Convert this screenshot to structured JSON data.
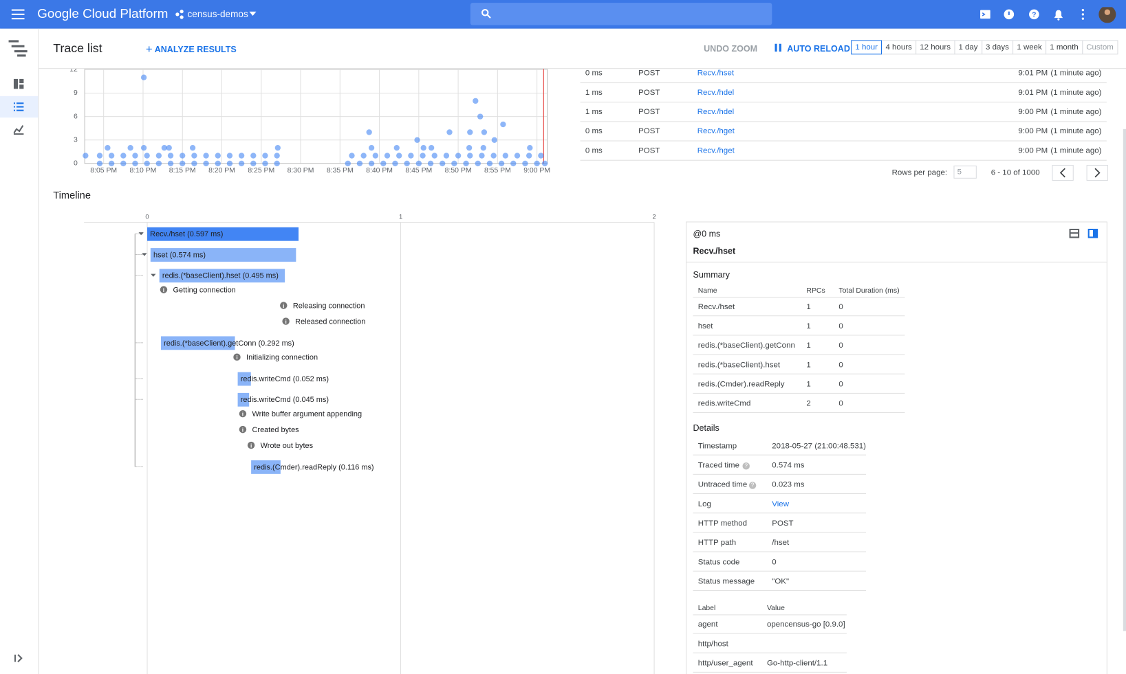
{
  "header": {
    "product": "Google Cloud Platform",
    "project": "census-demos"
  },
  "toolbar": {
    "title": "Trace list",
    "analyze": "ANALYZE RESULTS",
    "undo_zoom": "UNDO ZOOM",
    "auto_reload": "AUTO RELOAD",
    "ranges": [
      "1 hour",
      "4 hours",
      "12 hours",
      "1 day",
      "3 days",
      "1 week",
      "1 month",
      "Custom"
    ]
  },
  "chart_data": {
    "type": "scatter",
    "color": "#4285f4",
    "xlim": [
      2.6,
      61.3
    ],
    "ylim": [
      0,
      12.1
    ],
    "yticks": [
      0,
      3,
      6,
      9,
      12
    ],
    "xticks": [
      {
        "value": 5,
        "label": "8:05 PM"
      },
      {
        "value": 10,
        "label": "8:10 PM"
      },
      {
        "value": 15,
        "label": "8:15 PM"
      },
      {
        "value": 20,
        "label": "8:20 PM"
      },
      {
        "value": 25,
        "label": "8:25 PM"
      },
      {
        "value": 30,
        "label": "8:30 PM"
      },
      {
        "value": 35,
        "label": "8:35 PM"
      },
      {
        "value": 40,
        "label": "8:40 PM"
      },
      {
        "value": 45,
        "label": "8:45 PM"
      },
      {
        "value": 50,
        "label": "8:50 PM"
      },
      {
        "value": 55,
        "label": "8:55 PM"
      },
      {
        "value": 60,
        "label": "9:00 PM"
      }
    ],
    "grid": true,
    "points": [
      [
        2.7,
        1
      ],
      [
        4.5,
        1
      ],
      [
        6,
        1
      ],
      [
        7.5,
        1
      ],
      [
        9,
        1
      ],
      [
        10.5,
        1
      ],
      [
        12,
        1
      ],
      [
        13.5,
        1
      ],
      [
        15,
        1
      ],
      [
        16.5,
        1
      ],
      [
        18,
        1
      ],
      [
        19.5,
        1
      ],
      [
        21,
        1
      ],
      [
        22.5,
        1
      ],
      [
        24,
        1
      ],
      [
        25.5,
        1
      ],
      [
        27,
        1
      ],
      [
        36.5,
        1
      ],
      [
        38,
        1
      ],
      [
        39.5,
        1
      ],
      [
        41,
        1
      ],
      [
        42.5,
        1
      ],
      [
        44,
        1
      ],
      [
        45.5,
        1
      ],
      [
        47,
        1
      ],
      [
        48.5,
        1
      ],
      [
        50,
        1
      ],
      [
        51.5,
        1
      ],
      [
        53,
        1
      ],
      [
        54.5,
        1
      ],
      [
        56,
        1
      ],
      [
        57.5,
        1
      ],
      [
        59,
        1
      ],
      [
        60.5,
        1
      ],
      [
        4.5,
        0
      ],
      [
        6,
        0
      ],
      [
        7.5,
        0
      ],
      [
        9,
        0
      ],
      [
        10.5,
        0
      ],
      [
        12,
        0
      ],
      [
        13.5,
        0
      ],
      [
        15,
        0
      ],
      [
        16.5,
        0
      ],
      [
        18,
        0
      ],
      [
        19.5,
        0
      ],
      [
        21,
        0
      ],
      [
        22.5,
        0
      ],
      [
        24,
        0
      ],
      [
        25.5,
        0
      ],
      [
        27,
        0
      ],
      [
        36,
        0
      ],
      [
        37.5,
        0
      ],
      [
        39,
        0
      ],
      [
        40.5,
        0
      ],
      [
        42,
        0
      ],
      [
        43.5,
        0
      ],
      [
        45,
        0
      ],
      [
        46.5,
        0
      ],
      [
        48,
        0
      ],
      [
        49.5,
        0
      ],
      [
        51,
        0
      ],
      [
        52.5,
        0
      ],
      [
        54,
        0
      ],
      [
        55.5,
        0
      ],
      [
        57,
        0
      ],
      [
        58.5,
        0
      ],
      [
        60,
        0
      ],
      [
        61,
        0
      ],
      [
        5.5,
        2
      ],
      [
        8.4,
        2
      ],
      [
        10.1,
        2
      ],
      [
        12.7,
        2
      ],
      [
        13.3,
        2
      ],
      [
        16.3,
        2
      ],
      [
        27.1,
        2
      ],
      [
        39,
        2
      ],
      [
        42.2,
        2
      ],
      [
        45.6,
        2
      ],
      [
        46.6,
        2
      ],
      [
        51.4,
        2
      ],
      [
        53.2,
        2
      ],
      [
        59.1,
        2
      ],
      [
        38.7,
        4
      ],
      [
        48.9,
        4
      ],
      [
        51.5,
        4
      ],
      [
        53.3,
        4
      ],
      [
        44.8,
        3
      ],
      [
        54.6,
        3
      ],
      [
        55.7,
        5
      ],
      [
        52.8,
        6
      ],
      [
        52.2,
        8
      ],
      [
        10.1,
        11
      ]
    ]
  },
  "traces": {
    "rows": [
      [
        "0 ms",
        "POST",
        "Recv./hset",
        "9:01 PM",
        "(1 minute ago)"
      ],
      [
        "1 ms",
        "POST",
        "Recv./hdel",
        "9:01 PM",
        "(1 minute ago)"
      ],
      [
        "1 ms",
        "POST",
        "Recv./hdel",
        "9:00 PM",
        "(1 minute ago)"
      ],
      [
        "0 ms",
        "POST",
        "Recv./hget",
        "9:00 PM",
        "(1 minute ago)"
      ],
      [
        "0 ms",
        "POST",
        "Recv./hget",
        "9:00 PM",
        "(1 minute ago)"
      ]
    ],
    "rows_per_page_label": "Rows per page:",
    "rows_per_page": "5",
    "range": "6 - 10 of 1000"
  },
  "timeline": {
    "title": "Timeline",
    "xlim": [
      0,
      2
    ],
    "xticks": [
      0,
      1,
      2
    ],
    "items": [
      {
        "label": "Recv./hset (0.597 ms)",
        "start": 0,
        "duration": 0.597
      },
      {
        "label": "hset (0.574 ms)",
        "start": 0.013,
        "duration": 0.574
      },
      {
        "label": "redis.(*baseClient).hset (0.495 ms)",
        "start": 0.048,
        "duration": 0.495
      },
      {
        "label": "Getting connection",
        "at": 0.065
      },
      {
        "label": "Releasing connection",
        "at": 0.538
      },
      {
        "label": "Released connection",
        "at": 0.547
      },
      {
        "label": "redis.(*baseClient).getConn (0.292 ms)",
        "start": 0.054,
        "duration": 0.292
      },
      {
        "label": "Initializing connection",
        "at": 0.354
      },
      {
        "label": "redis.writeCmd (0.052 ms)",
        "start": 0.357,
        "duration": 0.052
      },
      {
        "label": "redis.writeCmd (0.045 ms)",
        "start": 0.357,
        "duration": 0.045
      },
      {
        "label": "Write buffer argument appending",
        "at": 0.377
      },
      {
        "label": "Created bytes",
        "at": 0.377
      },
      {
        "label": "Wrote out bytes",
        "at": 0.41
      },
      {
        "label": "redis.(Cmder).readReply (0.116 ms)",
        "start": 0.41,
        "duration": 0.116
      }
    ]
  },
  "details": {
    "offset": "@0 ms",
    "name": "Recv./hset",
    "summary_title": "Summary",
    "summary_headers": [
      "Name",
      "RPCs",
      "Total Duration (ms)"
    ],
    "summary_rows": [
      [
        "Recv./hset",
        "1",
        "0"
      ],
      [
        "hset",
        "1",
        "0"
      ],
      [
        "redis.(*baseClient).getConn",
        "1",
        "0"
      ],
      [
        "redis.(*baseClient).hset",
        "1",
        "0"
      ],
      [
        "redis.(Cmder).readReply",
        "1",
        "0"
      ],
      [
        "redis.writeCmd",
        "2",
        "0"
      ]
    ],
    "details_title": "Details",
    "details_rows": [
      [
        "Timestamp",
        "2018-05-27 (21:00:48.531)"
      ],
      [
        "Traced time",
        "0.574 ms"
      ],
      [
        "Untraced time",
        "0.023 ms"
      ],
      [
        "Log",
        "View"
      ],
      [
        "HTTP method",
        "POST"
      ],
      [
        "HTTP path",
        "/hset"
      ],
      [
        "Status code",
        "0"
      ],
      [
        "Status message",
        "\"OK\""
      ]
    ],
    "label_headers": [
      "Label",
      "Value"
    ],
    "label_rows": [
      [
        "agent",
        "opencensus-go [0.9.0]"
      ],
      [
        "http/host"
      ],
      [
        "http/user_agent",
        "Go-http-client/1.1"
      ]
    ]
  }
}
